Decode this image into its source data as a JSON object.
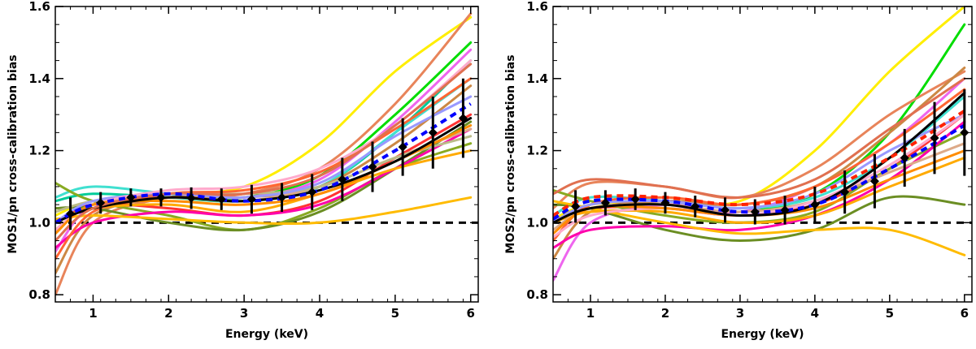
{
  "chart_data": [
    {
      "type": "line",
      "title": "",
      "xlabel": "Energy (keV)",
      "ylabel": "MOS1/pn cross-calibration bias",
      "xlim": [
        0.5,
        6.1
      ],
      "ylim": [
        0.78,
        1.6
      ],
      "xticks": [
        1,
        2,
        3,
        4,
        5,
        6
      ],
      "yticks": [
        0.8,
        1.0,
        1.2,
        1.4,
        1.6
      ],
      "ytick_labels": [
        "0.8",
        "1.0",
        "1.2",
        "1.4",
        "1.6"
      ],
      "grid": false,
      "reference_line": {
        "y": 1.0,
        "style": "dashed",
        "color": "#000000"
      },
      "series": [
        {
          "color": "#ffee00",
          "x": [
            0.5,
            1,
            2,
            3,
            4,
            5,
            6
          ],
          "y": [
            1.02,
            1.06,
            1.08,
            1.1,
            1.22,
            1.42,
            1.57
          ]
        },
        {
          "color": "#00dd00",
          "x": [
            0.5,
            1,
            2,
            3,
            4,
            5,
            6
          ],
          "y": [
            1.0,
            1.05,
            1.07,
            1.07,
            1.13,
            1.3,
            1.5
          ]
        },
        {
          "color": "#e8845a",
          "x": [
            0.5,
            1,
            2,
            3,
            4,
            5,
            6
          ],
          "y": [
            0.8,
            1.0,
            1.07,
            1.08,
            1.15,
            1.33,
            1.58
          ]
        },
        {
          "color": "#ee66ee",
          "x": [
            0.5,
            1,
            2,
            3,
            4,
            5,
            6
          ],
          "y": [
            0.92,
            1.05,
            1.08,
            1.07,
            1.12,
            1.28,
            1.48
          ]
        },
        {
          "color": "#00cc99",
          "x": [
            0.5,
            1,
            2,
            3,
            4,
            5,
            6
          ],
          "y": [
            1.06,
            1.08,
            1.07,
            1.06,
            1.1,
            1.25,
            1.45
          ]
        },
        {
          "color": "#40e0d0",
          "x": [
            0.5,
            1,
            2,
            3,
            4,
            5,
            6
          ],
          "y": [
            1.07,
            1.1,
            1.08,
            1.06,
            1.1,
            1.25,
            1.4
          ]
        },
        {
          "color": "#cc8844",
          "x": [
            0.5,
            1,
            2,
            3,
            4,
            5,
            6
          ],
          "y": [
            0.86,
            1.02,
            1.07,
            1.07,
            1.1,
            1.22,
            1.38
          ]
        },
        {
          "color": "#ff3333",
          "x": [
            0.5,
            1,
            2,
            3,
            4,
            5,
            6
          ],
          "y": [
            1.0,
            1.05,
            1.04,
            1.02,
            1.06,
            1.18,
            1.3
          ]
        },
        {
          "color": "#88aa22",
          "x": [
            0.5,
            1,
            2,
            3,
            4,
            5,
            6
          ],
          "y": [
            1.11,
            1.06,
            1.02,
            0.98,
            1.04,
            1.15,
            1.22
          ]
        },
        {
          "color": "#6b8e23",
          "x": [
            0.5,
            1,
            2,
            3,
            4,
            5,
            6
          ],
          "y": [
            1.04,
            1.04,
            1.0,
            0.98,
            1.03,
            1.15,
            1.28
          ]
        },
        {
          "color": "#ff00aa",
          "x": [
            0.5,
            1,
            2,
            3,
            4,
            5,
            6
          ],
          "y": [
            0.93,
            1.0,
            1.03,
            1.02,
            1.05,
            1.15,
            1.26
          ]
        },
        {
          "color": "#ffbb00",
          "x": [
            0.5,
            1,
            2,
            3,
            4,
            5,
            6
          ],
          "y": [
            1.01,
            1.02,
            1.01,
            1.0,
            1.0,
            1.03,
            1.07
          ]
        },
        {
          "color": "#ffaa00",
          "x": [
            0.5,
            1,
            2,
            3,
            4,
            5,
            6
          ],
          "y": [
            1.0,
            1.04,
            1.05,
            1.03,
            1.08,
            1.15,
            1.2
          ]
        },
        {
          "color": "#ddaa88",
          "x": [
            0.5,
            1,
            2,
            3,
            4,
            5,
            6
          ],
          "y": [
            0.98,
            1.05,
            1.07,
            1.06,
            1.1,
            1.18,
            1.26
          ]
        },
        {
          "color": "#bbbb88",
          "x": [
            0.5,
            1,
            2,
            3,
            4,
            5,
            6
          ],
          "y": [
            1.03,
            1.06,
            1.08,
            1.08,
            1.1,
            1.18,
            1.24
          ]
        },
        {
          "color": "#ff6633",
          "x": [
            0.5,
            1,
            2,
            3,
            4,
            5,
            6
          ],
          "y": [
            0.9,
            1.03,
            1.08,
            1.09,
            1.14,
            1.26,
            1.4
          ]
        },
        {
          "color": "#9999ff",
          "x": [
            0.5,
            1,
            2,
            3,
            4,
            5,
            6
          ],
          "y": [
            1.0,
            1.06,
            1.08,
            1.07,
            1.11,
            1.24,
            1.35
          ]
        },
        {
          "color": "#ffaacc",
          "x": [
            0.5,
            1,
            2,
            3,
            4,
            5,
            6
          ],
          "y": [
            0.98,
            1.05,
            1.09,
            1.1,
            1.15,
            1.27,
            1.45
          ]
        },
        {
          "color": "#ff8c00",
          "x": [
            0.5,
            1,
            2,
            3,
            4,
            5,
            6
          ],
          "y": [
            0.97,
            1.05,
            1.06,
            1.05,
            1.08,
            1.17,
            1.27
          ]
        },
        {
          "color": "#000000",
          "x": [
            0.5,
            1,
            2,
            3,
            4,
            5,
            6
          ],
          "y": [
            1.0,
            1.04,
            1.07,
            1.06,
            1.09,
            1.17,
            1.29
          ]
        },
        {
          "color": "#e07050",
          "x": [
            0.5,
            1,
            2,
            3,
            4,
            5,
            6
          ],
          "y": [
            0.95,
            1.04,
            1.08,
            1.08,
            1.13,
            1.27,
            1.44
          ]
        },
        {
          "color": "#0000ff",
          "style": "dashed",
          "x": [
            0.5,
            1,
            2,
            3,
            4,
            5,
            6
          ],
          "y": [
            1.0,
            1.05,
            1.08,
            1.06,
            1.09,
            1.2,
            1.33
          ]
        }
      ],
      "data_points": {
        "color": "#000000",
        "x": [
          0.7,
          1.1,
          1.5,
          1.9,
          2.3,
          2.7,
          3.1,
          3.5,
          3.9,
          4.3,
          4.7,
          5.1,
          5.5,
          5.9
        ],
        "y": [
          1.025,
          1.055,
          1.07,
          1.07,
          1.068,
          1.065,
          1.065,
          1.07,
          1.085,
          1.12,
          1.155,
          1.21,
          1.25,
          1.29
        ],
        "yerr": [
          0.045,
          0.03,
          0.025,
          0.025,
          0.03,
          0.03,
          0.04,
          0.04,
          0.05,
          0.06,
          0.07,
          0.08,
          0.1,
          0.11
        ]
      }
    },
    {
      "type": "line",
      "title": "",
      "xlabel": "Energy (keV)",
      "ylabel": "MOS2/pn cross-calibration bias",
      "xlim": [
        0.5,
        6.1
      ],
      "ylim": [
        0.78,
        1.6
      ],
      "xticks": [
        1,
        2,
        3,
        4,
        5,
        6
      ],
      "yticks": [
        0.8,
        1.0,
        1.2,
        1.4,
        1.6
      ],
      "ytick_labels": [
        "0.8",
        "1.0",
        "1.2",
        "1.4",
        "1.6"
      ],
      "grid": false,
      "reference_line": {
        "y": 1.0,
        "style": "dashed",
        "color": "#000000"
      },
      "series": [
        {
          "color": "#ffee00",
          "x": [
            0.5,
            1,
            2,
            3,
            4,
            5,
            6
          ],
          "y": [
            1.01,
            1.05,
            1.06,
            1.06,
            1.2,
            1.42,
            1.6
          ]
        },
        {
          "color": "#00dd00",
          "x": [
            0.5,
            1,
            2,
            3,
            4,
            5,
            6
          ],
          "y": [
            1.0,
            1.04,
            1.05,
            1.03,
            1.08,
            1.25,
            1.55
          ]
        },
        {
          "color": "#e8845a",
          "x": [
            0.5,
            1,
            2,
            3,
            4,
            5,
            6
          ],
          "y": [
            1.04,
            1.11,
            1.1,
            1.07,
            1.15,
            1.3,
            1.42
          ]
        },
        {
          "color": "#ee66ee",
          "x": [
            0.5,
            1,
            2,
            3,
            4,
            5,
            6
          ],
          "y": [
            0.84,
            1.0,
            1.05,
            1.03,
            1.1,
            1.22,
            1.4
          ]
        },
        {
          "color": "#40e0d0",
          "x": [
            0.5,
            1,
            2,
            3,
            4,
            5,
            6
          ],
          "y": [
            1.02,
            1.07,
            1.06,
            1.04,
            1.07,
            1.18,
            1.35
          ]
        },
        {
          "color": "#cc8844",
          "x": [
            0.5,
            1,
            2,
            3,
            4,
            5,
            6
          ],
          "y": [
            0.9,
            1.03,
            1.06,
            1.05,
            1.1,
            1.25,
            1.43
          ]
        },
        {
          "color": "#ff3333",
          "x": [
            0.5,
            1,
            2,
            3,
            4,
            5,
            6
          ],
          "y": [
            1.0,
            1.04,
            1.04,
            1.02,
            1.05,
            1.15,
            1.3
          ]
        },
        {
          "color": "#88aa22",
          "x": [
            0.5,
            1,
            2,
            3,
            4,
            5,
            6
          ],
          "y": [
            1.09,
            1.06,
            1.02,
            1.0,
            1.03,
            1.15,
            1.25
          ]
        },
        {
          "color": "#6b8e23",
          "x": [
            0.5,
            1,
            2,
            3,
            4,
            5,
            6
          ],
          "y": [
            1.05,
            1.04,
            0.98,
            0.95,
            0.98,
            1.07,
            1.05
          ]
        },
        {
          "color": "#ff00aa",
          "x": [
            0.5,
            1,
            2,
            3,
            4,
            5,
            6
          ],
          "y": [
            0.93,
            0.98,
            0.99,
            0.98,
            1.02,
            1.12,
            1.28
          ]
        },
        {
          "color": "#ffbb00",
          "x": [
            0.5,
            1,
            2,
            3,
            4,
            5,
            6
          ],
          "y": [
            1.06,
            1.04,
            1.0,
            0.97,
            0.98,
            0.98,
            0.91
          ]
        },
        {
          "color": "#ffaa00",
          "x": [
            0.5,
            1,
            2,
            3,
            4,
            5,
            6
          ],
          "y": [
            1.0,
            1.03,
            1.03,
            1.0,
            1.02,
            1.1,
            1.18
          ]
        },
        {
          "color": "#ddaa88",
          "x": [
            0.5,
            1,
            2,
            3,
            4,
            5,
            6
          ],
          "y": [
            0.98,
            1.04,
            1.05,
            1.03,
            1.06,
            1.14,
            1.22
          ]
        },
        {
          "color": "#ff6633",
          "x": [
            0.5,
            1,
            2,
            3,
            4,
            5,
            6
          ],
          "y": [
            0.95,
            1.05,
            1.07,
            1.05,
            1.1,
            1.22,
            1.37
          ]
        },
        {
          "color": "#9999ff",
          "x": [
            0.5,
            1,
            2,
            3,
            4,
            5,
            6
          ],
          "y": [
            1.0,
            1.05,
            1.06,
            1.04,
            1.08,
            1.2,
            1.3
          ]
        },
        {
          "color": "#ffaacc",
          "x": [
            0.5,
            1,
            2,
            3,
            4,
            5,
            6
          ],
          "y": [
            0.96,
            1.02,
            1.04,
            1.02,
            1.06,
            1.16,
            1.3
          ]
        },
        {
          "color": "#ff8c00",
          "x": [
            0.5,
            1,
            2,
            3,
            4,
            5,
            6
          ],
          "y": [
            0.97,
            1.04,
            1.04,
            1.02,
            1.04,
            1.12,
            1.2
          ]
        },
        {
          "color": "#000000",
          "x": [
            0.5,
            1,
            2,
            3,
            4,
            5,
            6
          ],
          "y": [
            1.0,
            1.04,
            1.05,
            1.02,
            1.05,
            1.18,
            1.36
          ]
        },
        {
          "color": "#e07050",
          "x": [
            0.5,
            1,
            2,
            3,
            4,
            5,
            6
          ],
          "y": [
            1.08,
            1.12,
            1.1,
            1.07,
            1.12,
            1.26,
            1.4
          ]
        },
        {
          "color": "#ff2200",
          "style": "dashed",
          "x": [
            0.5,
            1,
            2,
            3,
            4,
            5,
            6
          ],
          "y": [
            1.02,
            1.07,
            1.07,
            1.05,
            1.08,
            1.18,
            1.31
          ]
        },
        {
          "color": "#0000ff",
          "style": "dashed",
          "x": [
            0.5,
            1,
            2,
            3,
            4,
            5,
            6
          ],
          "y": [
            1.01,
            1.06,
            1.06,
            1.03,
            1.05,
            1.15,
            1.27
          ]
        }
      ],
      "data_points": {
        "color": "#000000",
        "x": [
          0.8,
          1.2,
          1.6,
          2.0,
          2.4,
          2.8,
          3.2,
          3.6,
          4.0,
          4.4,
          4.8,
          5.2,
          5.6,
          6.0
        ],
        "y": [
          1.045,
          1.055,
          1.065,
          1.055,
          1.045,
          1.035,
          1.03,
          1.035,
          1.05,
          1.085,
          1.115,
          1.18,
          1.235,
          1.25
        ],
        "yerr": [
          0.045,
          0.035,
          0.03,
          0.03,
          0.03,
          0.035,
          0.035,
          0.04,
          0.05,
          0.06,
          0.075,
          0.08,
          0.1,
          0.12
        ]
      }
    }
  ]
}
